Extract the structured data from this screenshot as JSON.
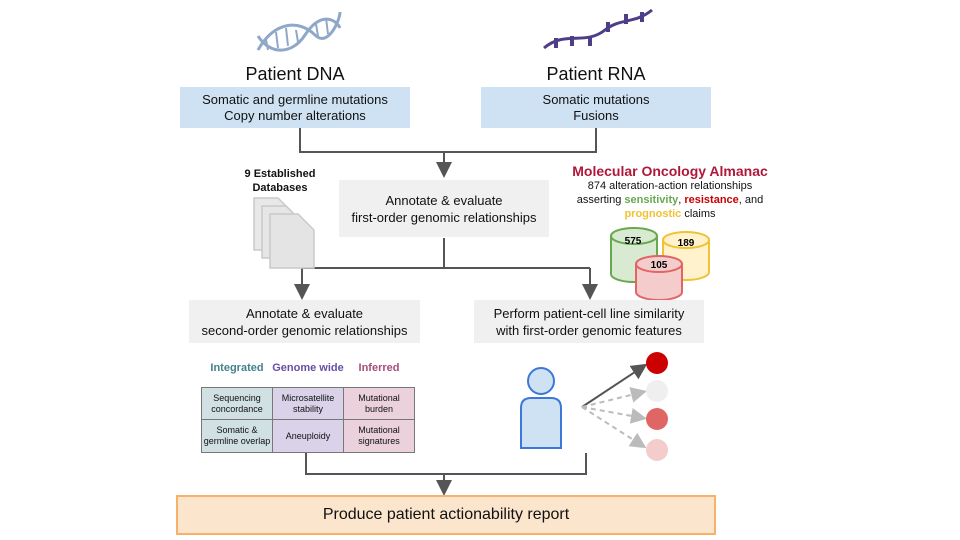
{
  "dna": {
    "title": "Patient DNA",
    "line1": "Somatic and germline mutations",
    "line2": "Copy number alterations"
  },
  "rna": {
    "title": "Patient RNA",
    "line1": "Somatic mutations",
    "line2": "Fusions"
  },
  "databases": {
    "line1": "9 Established",
    "line2": "Databases"
  },
  "first_order": {
    "line1": "Annotate & evaluate",
    "line2": "first-order genomic relationships"
  },
  "almanac": {
    "title": "Molecular Oncology Almanac",
    "line1": "874 alteration-action relationships",
    "line2_pre": "asserting ",
    "sensitivity": "sensitivity",
    "comma": ", ",
    "resistance": "resistance",
    "line2_post": ", and",
    "prognostic": "prognostic",
    "line3_post": " claims",
    "counts": {
      "sensitivity": "575",
      "prognostic": "189",
      "resistance": "105"
    },
    "colors": {
      "sensitivity": "#6aa84f",
      "resistance": "#cc0000",
      "prognostic": "#f1c232"
    }
  },
  "second_order": {
    "line1": "Annotate & evaluate",
    "line2": "second-order genomic relationships"
  },
  "similarity": {
    "line1": "Perform patient-cell line similarity",
    "line2": "with first-order genomic features"
  },
  "grid": {
    "headers": [
      "Integrated",
      "Genome wide",
      "Inferred"
    ],
    "header_colors": [
      "#45818e",
      "#674ea7",
      "#a64d79"
    ],
    "rows": [
      [
        [
          "Sequencing",
          "concordance"
        ],
        [
          "Microsatellite",
          "stability"
        ],
        [
          "Mutational",
          "burden"
        ]
      ],
      [
        [
          "Somatic &",
          "germline overlap"
        ],
        [
          "Aneuploidy"
        ],
        [
          "Mutational",
          "signatures"
        ]
      ]
    ]
  },
  "report": {
    "label": "Produce patient actionability report"
  }
}
